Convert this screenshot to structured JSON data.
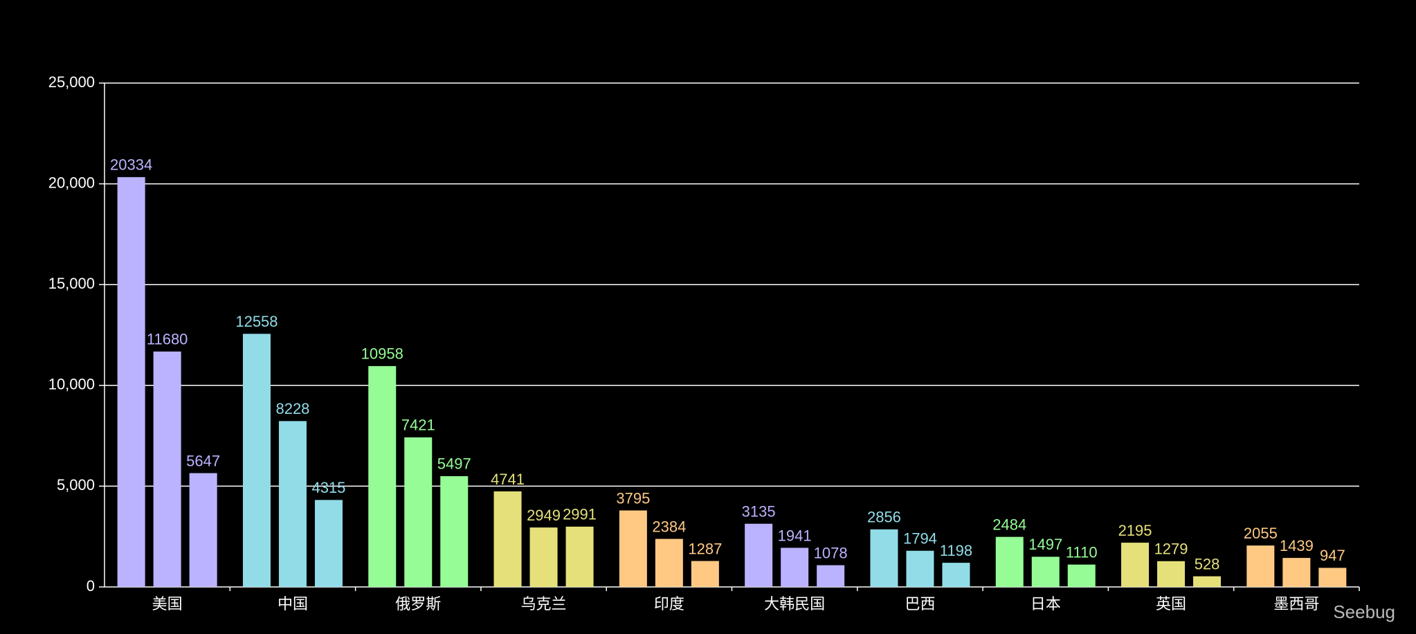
{
  "chart_data": {
    "type": "bar",
    "categories": [
      "美国",
      "中国",
      "俄罗斯",
      "乌克兰",
      "印度",
      "大韩民国",
      "巴西",
      "日本",
      "英国",
      "墨西哥"
    ],
    "colors": [
      "#bbb3ff",
      "#92dce8",
      "#96fc96",
      "#e5e07a",
      "#ffc984",
      "#bbb3ff",
      "#92dce8",
      "#96fc96",
      "#e5e07a",
      "#ffc984"
    ],
    "series": [
      {
        "values": [
          20334,
          12558,
          10958,
          4741,
          3795,
          3135,
          2856,
          2484,
          2195,
          2055
        ]
      },
      {
        "values": [
          11680,
          8228,
          7421,
          2949,
          2384,
          1941,
          1794,
          1497,
          1279,
          1439
        ]
      },
      {
        "values": [
          5647,
          4315,
          5497,
          2991,
          1287,
          1078,
          1198,
          1110,
          528,
          947
        ]
      }
    ],
    "ylim": [
      0,
      25000
    ],
    "yticks": [
      0,
      {
        "value": 5000,
        "label": "5,000"
      },
      {
        "value": 10000,
        "label": "10,000"
      },
      {
        "value": 15000,
        "label": "15,000"
      },
      {
        "value": 20000,
        "label": "20,000"
      },
      {
        "value": 25000,
        "label": "25,000"
      }
    ],
    "grid": true,
    "watermark": "Seebug"
  }
}
